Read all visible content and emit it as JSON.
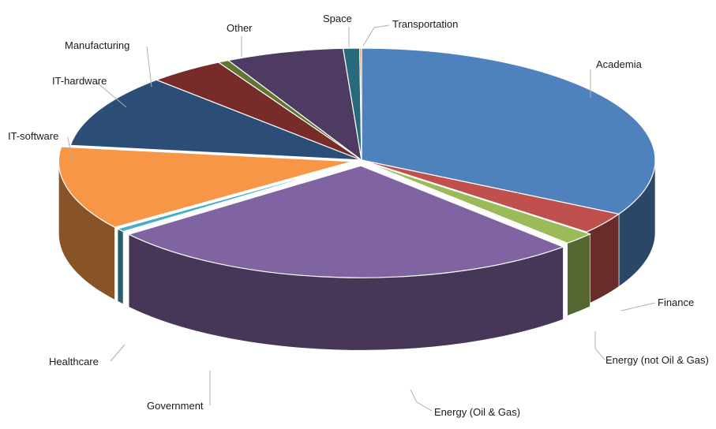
{
  "chart_data": {
    "type": "pie",
    "title": "",
    "style": "3d-exploded-ellipse",
    "slices": [
      {
        "name": "Academia",
        "value": 33.0,
        "color": "#4f81bd"
      },
      {
        "name": "Finance",
        "value": 3.1,
        "color": "#c0504d"
      },
      {
        "name": "Energy (not Oil & Gas)",
        "value": 1.8,
        "color": "#9bbb59"
      },
      {
        "name": "Energy (Oil & Gas)",
        "value": 26.6,
        "color": "#8064a2"
      },
      {
        "name": "Government",
        "value": 0.5,
        "color": "#4bacc6"
      },
      {
        "name": "Healthcare",
        "value": 12.1,
        "color": "#f79646"
      },
      {
        "name": "IT-software",
        "value": 10.6,
        "color": "#2c4d75"
      },
      {
        "name": "IT-hardware",
        "value": 4.2,
        "color": "#772c2a"
      },
      {
        "name": "Manufacturing",
        "value": 0.6,
        "color": "#5f7530"
      },
      {
        "name": "Other",
        "value": 6.5,
        "color": "#4d3b62"
      },
      {
        "name": "Space",
        "value": 0.9,
        "color": "#276a7c"
      },
      {
        "name": "Transportation",
        "value": 0.1,
        "color": "#e07a1f"
      }
    ]
  }
}
